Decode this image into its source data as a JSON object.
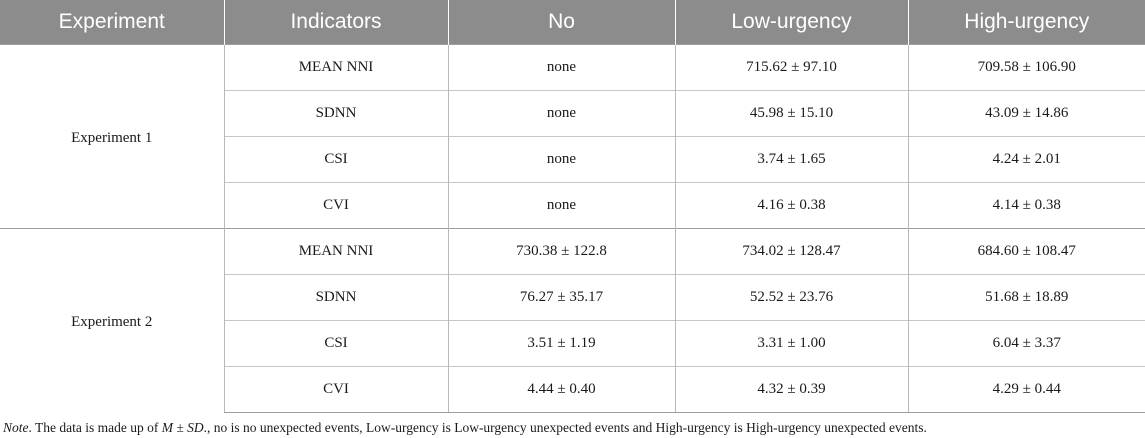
{
  "table": {
    "headers": [
      "Experiment",
      "Indicators",
      "No",
      "Low-urgency",
      "High-urgency"
    ],
    "groups": [
      {
        "experiment": "Experiment 1",
        "rows": [
          {
            "indicator": "MEAN NNI",
            "no": "none",
            "low": "715.62 ± 97.10",
            "high": "709.58 ± 106.90"
          },
          {
            "indicator": "SDNN",
            "no": "none",
            "low": "45.98 ± 15.10",
            "high": "43.09 ± 14.86"
          },
          {
            "indicator": "CSI",
            "no": "none",
            "low": "3.74 ± 1.65",
            "high": "4.24 ± 2.01"
          },
          {
            "indicator": "CVI",
            "no": "none",
            "low": "4.16 ± 0.38",
            "high": "4.14 ± 0.38"
          }
        ]
      },
      {
        "experiment": "Experiment 2",
        "rows": [
          {
            "indicator": "MEAN NNI",
            "no": "730.38 ± 122.8",
            "low": "734.02 ± 128.47",
            "high": "684.60 ± 108.47"
          },
          {
            "indicator": "SDNN",
            "no": "76.27 ± 35.17",
            "low": "52.52 ± 23.76",
            "high": "51.68 ± 18.89"
          },
          {
            "indicator": "CSI",
            "no": "3.51 ± 1.19",
            "low": "3.31 ± 1.00",
            "high": "6.04 ± 3.37"
          },
          {
            "indicator": "CVI",
            "no": "4.44 ± 0.40",
            "low": "4.32 ± 0.39",
            "high": "4.29 ± 0.44"
          }
        ]
      }
    ]
  },
  "note": {
    "label": "Note",
    "text_before": ". The data is made up of ",
    "emph": "M ± SD",
    "text_after": "., no is no unexpected events, Low-urgency is Low-urgency unexpected events and High-urgency is High-urgency unexpected events."
  }
}
